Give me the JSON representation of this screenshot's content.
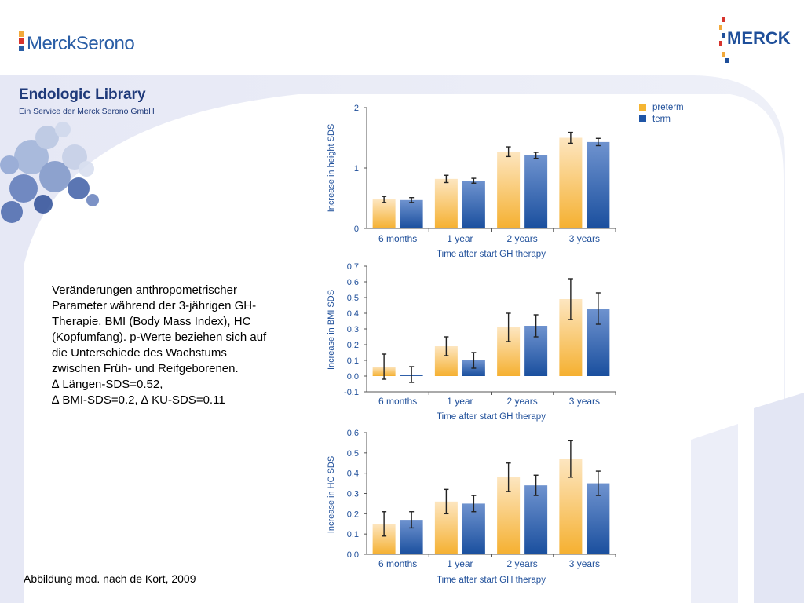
{
  "header": {
    "left_logo": "MerckSerono",
    "right_logo": "MERCK"
  },
  "library": {
    "title": "Endologic Library",
    "subtitle": "Ein Service der Merck Serono GmbH"
  },
  "description": {
    "lines": [
      "Veränderungen anthropometrischer",
      "Parameter während der 3-jährigen GH-",
      "Therapie. BMI (Body Mass Index), HC",
      "(Kopfumfang). p-Werte beziehen sich auf",
      "die Unterschiede des Wachstums",
      "zwischen Früh- und Reifgeborenen.",
      "∆ Längen-SDS=0.52,",
      "∆ BMI-SDS=0.2, ∆ KU-SDS=0.11"
    ]
  },
  "footer": "Abbildung mod. nach de Kort, 2009",
  "legend": {
    "items": [
      {
        "label": "preterm",
        "color": "#f5b532"
      },
      {
        "label": "term",
        "color": "#1f55a6"
      }
    ]
  },
  "colors": {
    "preterm_top": "#fde6c0",
    "preterm_bottom": "#f5b030",
    "term_top": "#6f93cf",
    "term_bottom": "#1a4f9e",
    "brand_blue": "#1f4f9a",
    "background_lavender": "#e8e9f5"
  },
  "chart_data": [
    {
      "type": "bar",
      "categories": [
        "6 months",
        "1 year",
        "2 years",
        "3 years"
      ],
      "xlabel": "Time after start GH therapy",
      "ylabel": "Increase in height SDS",
      "ylim": [
        0,
        2
      ],
      "yticks": [
        "0",
        "1",
        "2"
      ],
      "series": [
        {
          "name": "preterm",
          "values": [
            0.48,
            0.82,
            1.27,
            1.5
          ],
          "errors": [
            0.05,
            0.06,
            0.08,
            0.09
          ]
        },
        {
          "name": "term",
          "values": [
            0.47,
            0.79,
            1.21,
            1.43
          ],
          "errors": [
            0.04,
            0.04,
            0.05,
            0.06
          ]
        }
      ]
    },
    {
      "type": "bar",
      "categories": [
        "6 months",
        "1 year",
        "2 years",
        "3 years"
      ],
      "xlabel": "Time after start GH therapy",
      "ylabel": "Increase in BMI SDS",
      "ylim": [
        -0.1,
        0.7
      ],
      "yticks": [
        "-0.1",
        "0.0",
        "0.1",
        "0.2",
        "0.3",
        "0.4",
        "0.5",
        "0.6",
        "0.7"
      ],
      "series": [
        {
          "name": "preterm",
          "values": [
            0.06,
            0.19,
            0.31,
            0.49
          ],
          "errors": [
            0.08,
            0.06,
            0.09,
            0.13
          ]
        },
        {
          "name": "term",
          "values": [
            0.01,
            0.1,
            0.32,
            0.43
          ],
          "errors": [
            0.05,
            0.05,
            0.07,
            0.1
          ]
        }
      ]
    },
    {
      "type": "bar",
      "categories": [
        "6 months",
        "1 year",
        "2 years",
        "3 years"
      ],
      "xlabel": "Time after start GH therapy",
      "ylabel": "Increase in HC SDS",
      "ylim": [
        0,
        0.6
      ],
      "yticks": [
        "0.0",
        "0.1",
        "0.2",
        "0.3",
        "0.4",
        "0.5",
        "0.6"
      ],
      "series": [
        {
          "name": "preterm",
          "values": [
            0.15,
            0.26,
            0.38,
            0.47
          ],
          "errors": [
            0.06,
            0.06,
            0.07,
            0.09
          ]
        },
        {
          "name": "term",
          "values": [
            0.17,
            0.25,
            0.34,
            0.35
          ],
          "errors": [
            0.04,
            0.04,
            0.05,
            0.06
          ]
        }
      ]
    }
  ]
}
